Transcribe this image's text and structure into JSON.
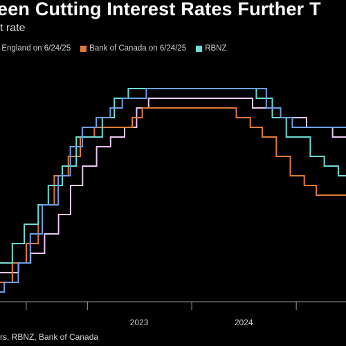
{
  "header": {
    "title": "een Cutting Interest Rates Further T",
    "subtitle": "t rate"
  },
  "source": "rs, RBNZ, Bank of Canada",
  "colors": {
    "background": "#000000",
    "boe": "#ebc6f3",
    "boc": "#e07b39",
    "rbnz": "#6fdcd3",
    "other": "#6e9fe6"
  },
  "chart_data": {
    "type": "line",
    "title": "een Cutting Interest Rates Further T",
    "ylabel": "t rate",
    "xlabel": "",
    "x_ticks": [
      "2023",
      "2024"
    ],
    "xlim": [
      "2022-03-01",
      "2025-06-24"
    ],
    "ylim": [
      0,
      6
    ],
    "legend_position": "top",
    "series": [
      {
        "name": "f England on 6/24/25",
        "color": "#ebc6f3",
        "points": [
          [
            "2022-03-01",
            0.75
          ],
          [
            "2022-05-05",
            1.0
          ],
          [
            "2022-06-16",
            1.25
          ],
          [
            "2022-08-04",
            1.75
          ],
          [
            "2022-09-22",
            2.25
          ],
          [
            "2022-11-03",
            3.0
          ],
          [
            "2022-12-15",
            3.5
          ],
          [
            "2023-02-02",
            4.0
          ],
          [
            "2023-03-23",
            4.25
          ],
          [
            "2023-05-11",
            4.5
          ],
          [
            "2023-06-22",
            5.0
          ],
          [
            "2023-08-03",
            5.25
          ],
          [
            "2024-08-01",
            5.0
          ],
          [
            "2024-11-07",
            4.75
          ],
          [
            "2025-02-06",
            4.5
          ],
          [
            "2025-05-08",
            4.25
          ],
          [
            "2025-06-24",
            4.25
          ]
        ]
      },
      {
        "name": "Bank of Canada on 6/24/25",
        "color": "#e07b39",
        "points": [
          [
            "2022-03-01",
            0.5
          ],
          [
            "2022-04-13",
            1.0
          ],
          [
            "2022-06-01",
            1.5
          ],
          [
            "2022-07-13",
            2.5
          ],
          [
            "2022-09-07",
            3.25
          ],
          [
            "2022-10-26",
            3.75
          ],
          [
            "2022-12-07",
            4.25
          ],
          [
            "2023-01-25",
            4.5
          ],
          [
            "2023-06-07",
            4.75
          ],
          [
            "2023-07-12",
            5.0
          ],
          [
            "2024-06-05",
            4.75
          ],
          [
            "2024-07-24",
            4.5
          ],
          [
            "2024-09-04",
            4.25
          ],
          [
            "2024-10-23",
            3.75
          ],
          [
            "2024-12-11",
            3.25
          ],
          [
            "2025-01-29",
            3.0
          ],
          [
            "2025-03-12",
            2.75
          ],
          [
            "2025-06-24",
            2.75
          ]
        ]
      },
      {
        "name": "RBNZ",
        "color": "#6fdcd3",
        "points": [
          [
            "2022-03-01",
            1.0
          ],
          [
            "2022-04-13",
            1.5
          ],
          [
            "2022-05-25",
            2.0
          ],
          [
            "2022-07-13",
            2.5
          ],
          [
            "2022-08-17",
            3.0
          ],
          [
            "2022-10-05",
            3.5
          ],
          [
            "2022-11-23",
            4.25
          ],
          [
            "2023-02-22",
            4.75
          ],
          [
            "2023-04-05",
            5.25
          ],
          [
            "2023-05-24",
            5.5
          ],
          [
            "2024-08-14",
            5.25
          ],
          [
            "2024-10-09",
            4.75
          ],
          [
            "2024-11-27",
            4.25
          ],
          [
            "2025-02-19",
            3.75
          ],
          [
            "2025-04-09",
            3.5
          ],
          [
            "2025-05-28",
            3.25
          ],
          [
            "2025-06-24",
            3.25
          ]
        ]
      },
      {
        "name": "",
        "color": "#6e9fe6",
        "points": [
          [
            "2022-03-01",
            0.25
          ],
          [
            "2022-03-16",
            0.5
          ],
          [
            "2022-05-04",
            1.0
          ],
          [
            "2022-06-15",
            1.75
          ],
          [
            "2022-07-27",
            2.5
          ],
          [
            "2022-09-21",
            3.25
          ],
          [
            "2022-11-02",
            4.0
          ],
          [
            "2022-12-14",
            4.5
          ],
          [
            "2023-02-01",
            4.75
          ],
          [
            "2023-03-22",
            5.0
          ],
          [
            "2023-05-03",
            5.25
          ],
          [
            "2023-07-26",
            5.5
          ],
          [
            "2024-09-18",
            5.0
          ],
          [
            "2024-11-07",
            4.75
          ],
          [
            "2024-12-18",
            4.5
          ],
          [
            "2025-06-24",
            4.5
          ]
        ]
      }
    ]
  }
}
